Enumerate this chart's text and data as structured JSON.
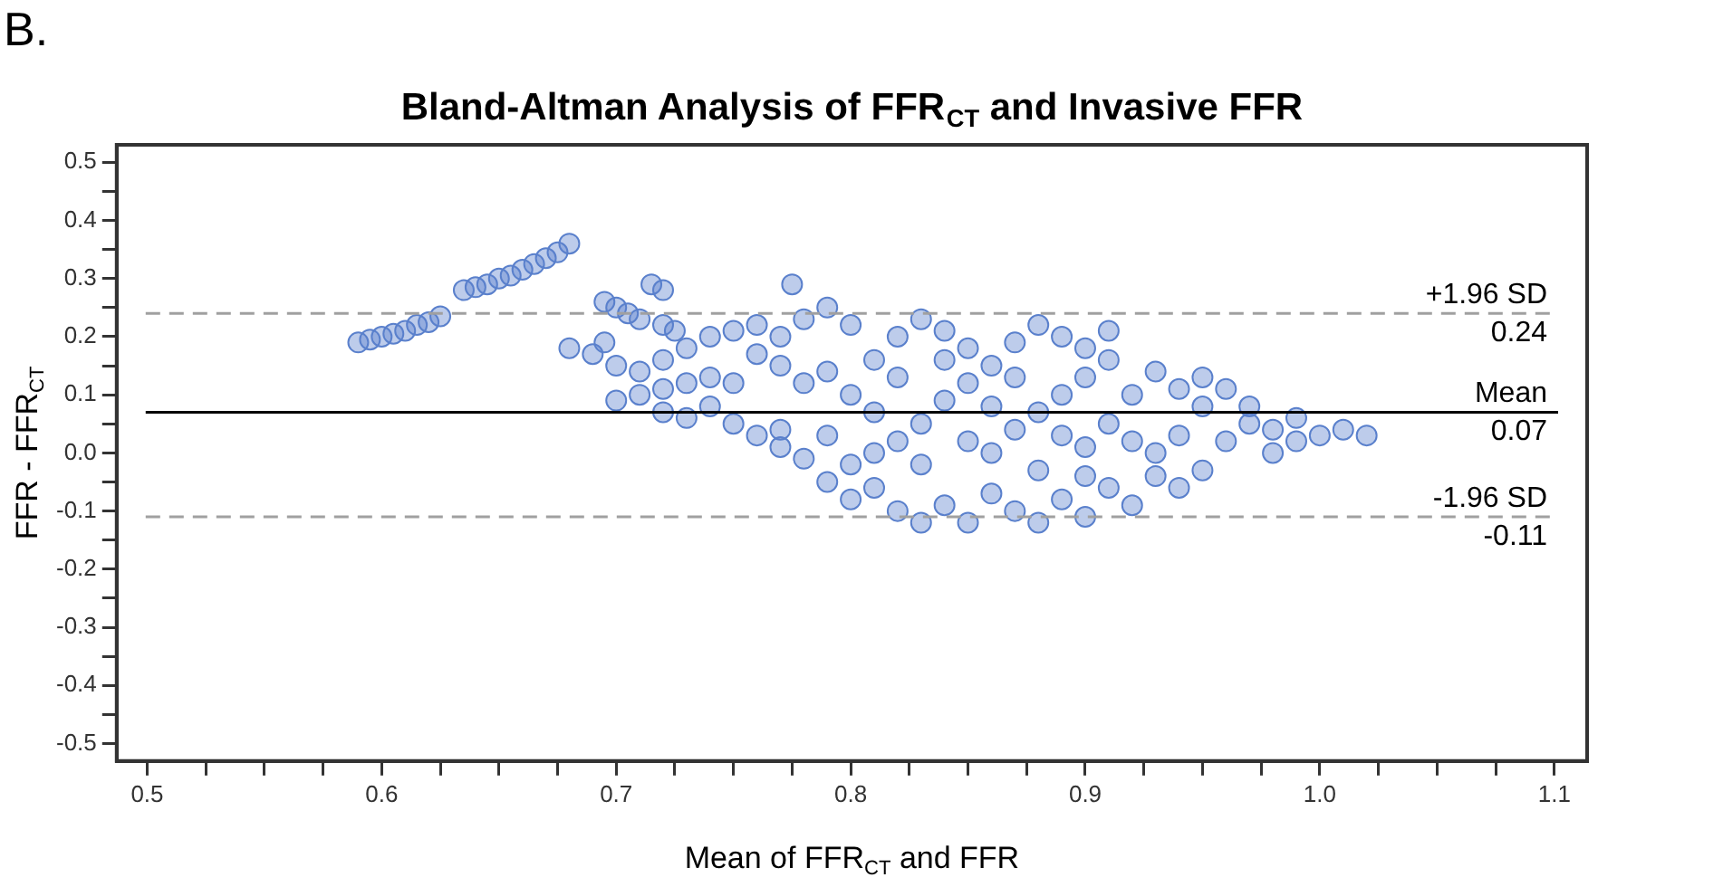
{
  "chart_data": {
    "type": "scatter",
    "title": "Bland-Altman Analysis of FFR$_{CT}$ and Invasive FFR",
    "xlabel": "Mean of FFR$_{CT}$ and FFR",
    "ylabel": "FFR - FFR$_{CT}$",
    "annotations": [
      "B.",
      {
        "text": "0.24",
        "y": 0.24
      },
      {
        "text": "0.07",
        "y": 0.07
      },
      {
        "text": "-0.11",
        "y": -0.11
      }
    ],
    "xlim": [
      0.487,
      1.114
    ],
    "ylim": [
      -0.53,
      0.53
    ],
    "xticks": [
      0.5,
      {
        "value": 0.525,
        "label": null
      },
      {
        "value": 0.55,
        "label": null
      },
      {
        "value": 0.575,
        "label": null
      },
      0.6,
      {
        "value": 0.625,
        "label": null
      },
      {
        "value": 0.65,
        "label": null
      },
      {
        "value": 0.675,
        "label": null
      },
      0.7,
      {
        "value": 0.725,
        "label": null
      },
      {
        "value": 0.75,
        "label": null
      },
      {
        "value": 0.775,
        "label": null
      },
      0.8,
      {
        "value": 0.825,
        "label": null
      },
      {
        "value": 0.85,
        "label": null
      },
      {
        "value": 0.875,
        "label": null
      },
      0.9,
      {
        "value": 0.925,
        "label": null
      },
      {
        "value": 0.95,
        "label": null
      },
      {
        "value": 0.975,
        "label": null
      },
      {
        "value": 1,
        "label": "1.0"
      },
      {
        "value": 1.025,
        "label": null
      },
      {
        "value": 1.05,
        "label": null
      },
      {
        "value": 1.075,
        "label": null
      },
      1.1
    ],
    "yticks": [
      -0.5,
      {
        "value": -0.45,
        "label": null
      },
      -0.4,
      {
        "value": -0.35,
        "label": null
      },
      -0.3,
      {
        "value": -0.25,
        "label": null
      },
      -0.2,
      {
        "value": -0.15,
        "label": null
      },
      -0.1,
      {
        "value": -0.05,
        "label": null
      },
      {
        "value": 0,
        "label": "0.0"
      },
      {
        "value": 0.05,
        "label": null
      },
      0.1,
      {
        "value": 0.15,
        "label": null
      },
      0.2,
      {
        "value": 0.25,
        "label": null
      },
      0.3,
      {
        "value": 0.35,
        "label": null
      },
      0.4,
      {
        "value": 0.45,
        "label": null
      },
      0.5
    ],
    "grid": false,
    "legend": false,
    "marker": "circle",
    "ref_lines": [
      {
        "axis": "y",
        "value": 0.24,
        "label": "+1.96 SD",
        "color": "#a0a0a0",
        "line_style": "dashed"
      },
      {
        "axis": "y",
        "value": 0.07,
        "label": "Mean",
        "color": "#000000",
        "line_style": "solid"
      },
      {
        "axis": "y",
        "value": -0.11,
        "label": "-1.96 SD",
        "color": "#a0a0a0",
        "line_style": "dashed"
      }
    ],
    "series": [
      {
        "color": "#5a80cc",
        "x": [
          0.59,
          0.595,
          0.6,
          0.605,
          0.61,
          0.615,
          0.62,
          0.625,
          0.635,
          0.64,
          0.645,
          0.65,
          0.655,
          0.66,
          0.665,
          0.67,
          0.675,
          0.68,
          0.695,
          0.7,
          0.705,
          0.71,
          0.715,
          0.72,
          0.72,
          0.725,
          0.68,
          0.69,
          0.695,
          0.7,
          0.71,
          0.72,
          0.7,
          0.71,
          0.72,
          0.73,
          0.74,
          0.75,
          0.72,
          0.73,
          0.74,
          0.75,
          0.76,
          0.77,
          0.73,
          0.74,
          0.75,
          0.76,
          0.77,
          0.78,
          0.775,
          0.79,
          0.8,
          0.76,
          0.77,
          0.78,
          0.79,
          0.8,
          0.81,
          0.82,
          0.83,
          0.84,
          0.85,
          0.8,
          0.81,
          0.82,
          0.83,
          0.84,
          0.85,
          0.86,
          0.87,
          0.88,
          0.89,
          0.9,
          0.91,
          0.79,
          0.8,
          0.81,
          0.82,
          0.83,
          0.84,
          0.85,
          0.86,
          0.87,
          0.88,
          0.89,
          0.9,
          0.91,
          0.92,
          0.93,
          0.94,
          0.95,
          0.83,
          0.85,
          0.86,
          0.87,
          0.88,
          0.89,
          0.9,
          0.91,
          0.92,
          0.93,
          0.94,
          0.95,
          0.92,
          0.93,
          0.94,
          0.96,
          0.97,
          0.96,
          0.97,
          0.98,
          0.99,
          1.0,
          1.01,
          1.02,
          0.98,
          0.99,
          0.9,
          0.91,
          0.89,
          0.87,
          0.86,
          0.84,
          0.82,
          0.81,
          0.79,
          0.78,
          0.77,
          0.88,
          0.9,
          0.95
        ],
        "values": [
          0.19,
          0.195,
          0.2,
          0.205,
          0.21,
          0.22,
          0.225,
          0.235,
          0.28,
          0.285,
          0.29,
          0.3,
          0.305,
          0.315,
          0.325,
          0.335,
          0.345,
          0.36,
          0.26,
          0.25,
          0.24,
          0.23,
          0.29,
          0.28,
          0.22,
          0.21,
          0.18,
          0.17,
          0.19,
          0.15,
          0.14,
          0.16,
          0.09,
          0.1,
          0.11,
          0.12,
          0.13,
          0.12,
          0.07,
          0.06,
          0.08,
          0.05,
          0.03,
          0.04,
          0.18,
          0.2,
          0.21,
          0.22,
          0.2,
          0.23,
          0.29,
          0.25,
          0.22,
          0.17,
          0.15,
          0.12,
          0.14,
          0.1,
          0.16,
          0.2,
          0.23,
          0.21,
          0.18,
          -0.02,
          0,
          0.02,
          0.05,
          0.09,
          0.12,
          0.15,
          0.19,
          0.22,
          0.2,
          0.18,
          0.21,
          -0.05,
          -0.08,
          -0.06,
          -0.1,
          -0.12,
          -0.09,
          -0.12,
          -0.07,
          -0.1,
          -0.12,
          -0.08,
          -0.11,
          -0.06,
          -0.09,
          -0.04,
          -0.06,
          -0.03,
          -0.02,
          0.02,
          0,
          0.04,
          0.07,
          0.03,
          0.01,
          0.05,
          0.1,
          0.14,
          0.11,
          0.08,
          0.02,
          0,
          0.03,
          0.02,
          0.05,
          0.11,
          0.08,
          0.04,
          0.06,
          0.03,
          0.04,
          0.03,
          0,
          0.02,
          0.13,
          0.16,
          0.1,
          0.13,
          0.08,
          0.16,
          0.13,
          0.07,
          0.03,
          -0.01,
          0.01,
          -0.03,
          -0.04,
          0.13
        ]
      }
    ]
  }
}
